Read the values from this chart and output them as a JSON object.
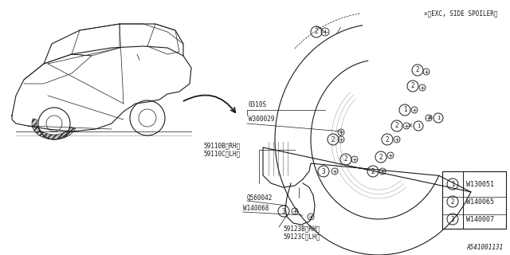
{
  "bg_color": "#ffffff",
  "footnote": "×＜EXC, SIDE SPOILER＞",
  "diagram_id": "A541001131",
  "legend": [
    {
      "num": "1",
      "code": "W130051"
    },
    {
      "num": "2",
      "code": "W140065"
    },
    {
      "num": "3",
      "code": "W140007"
    }
  ],
  "fig_w": 6.4,
  "fig_h": 3.2,
  "dpi": 100
}
